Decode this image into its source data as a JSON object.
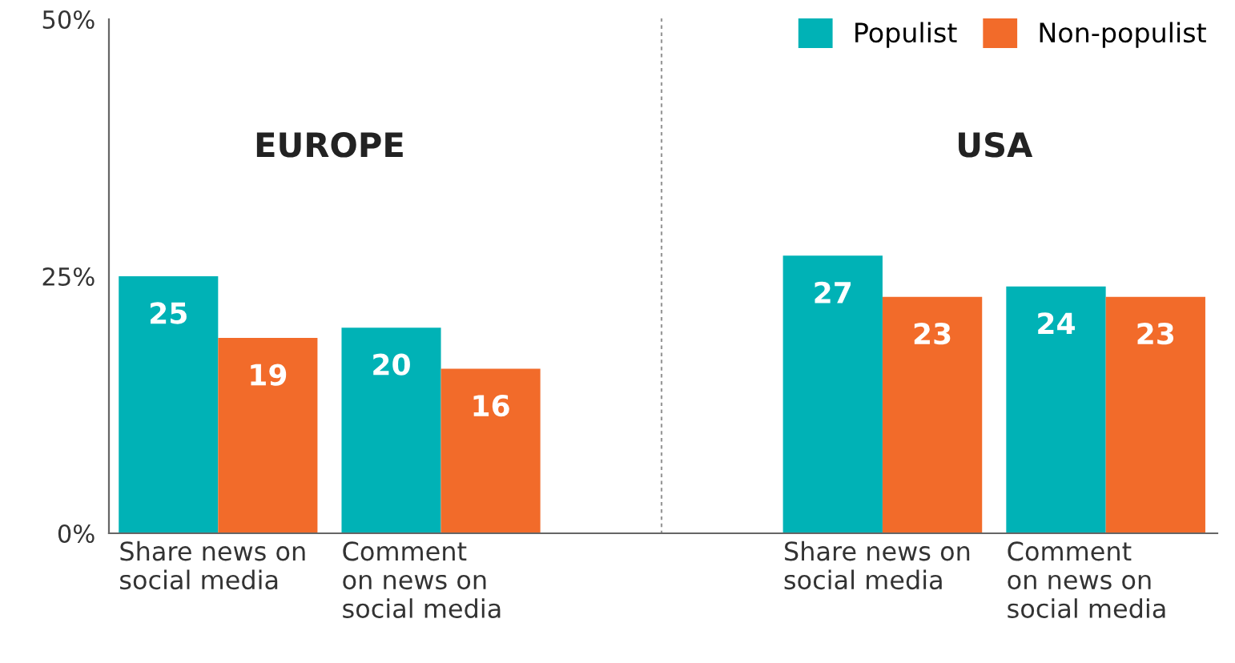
{
  "chart_data": [
    {
      "type": "bar",
      "title": "EUROPE",
      "categories": [
        "Share news on\nsocial media",
        "Comment\non news on\nsocial media"
      ],
      "series": [
        {
          "color": "#00b2b6",
          "values": [
            25,
            20
          ]
        },
        {
          "color": "#f26b2a",
          "values": [
            19,
            16
          ]
        }
      ],
      "ylim": [
        0,
        50
      ],
      "yticks": [
        {
          "value": 0,
          "label": "0%"
        },
        {
          "value": 25,
          "label": "25%"
        },
        {
          "value": 50,
          "label": "50%"
        }
      ],
      "data_labels": true,
      "grid": false,
      "legend": false
    },
    {
      "type": "bar",
      "title": "USA",
      "categories": [
        "Share news on\nsocial media",
        "Comment\non news on\nsocial media"
      ],
      "series": [
        {
          "name": "Populist",
          "color": "#00b2b6",
          "values": [
            27,
            24
          ]
        },
        {
          "name": "Non-populist",
          "color": "#f26b2a",
          "values": [
            23,
            23
          ]
        }
      ],
      "ylim": [
        0,
        50
      ],
      "data_labels": true,
      "grid": false,
      "legend": "top right",
      "tick_labels": "x"
    }
  ]
}
